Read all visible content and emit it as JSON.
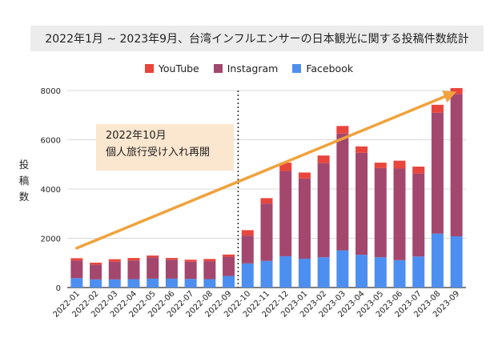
{
  "chart_data": {
    "type": "bar",
    "stacked": true,
    "title": "2022年1月 ~ 2023年9月、台湾インフルエンサーの日本観光に関する投稿件数統計",
    "ylabel": "投稿数",
    "xlabel": "",
    "ylim": [
      0,
      8000
    ],
    "yticks": [
      0,
      2000,
      4000,
      6000,
      8000
    ],
    "grid": true,
    "legend_position": "top-center",
    "categories": [
      "2022-01",
      "2022-02",
      "2022-03",
      "2022-04",
      "2022-05",
      "2022-06",
      "2022-07",
      "2022-08",
      "2022-09",
      "2022-10",
      "2022-11",
      "2022-12",
      "2023-01",
      "2023-02",
      "2023-03",
      "2023-04",
      "2023-05",
      "2023-06",
      "2023-07",
      "2023-08",
      "2023-09"
    ],
    "series": [
      {
        "name": "Facebook",
        "color": "#4d8ff0",
        "values": [
          380,
          330,
          330,
          340,
          360,
          360,
          350,
          340,
          470,
          980,
          1080,
          1270,
          1170,
          1230,
          1510,
          1330,
          1230,
          1110,
          1260,
          2190,
          2080
        ]
      },
      {
        "name": "Instagram",
        "color": "#a3476e",
        "values": [
          720,
          600,
          720,
          760,
          870,
          770,
          700,
          730,
          780,
          1130,
          2330,
          3460,
          3260,
          3820,
          4740,
          4140,
          3620,
          3720,
          3370,
          4910,
          5780
        ]
      },
      {
        "name": "YouTube",
        "color": "#e8453c",
        "values": [
          90,
          80,
          100,
          100,
          70,
          70,
          80,
          90,
          90,
          220,
          220,
          340,
          240,
          310,
          310,
          260,
          220,
          320,
          280,
          320,
          240
        ]
      }
    ],
    "legend_order": [
      "YouTube",
      "Instagram",
      "Facebook"
    ],
    "divider_after": "2022-09",
    "annotation": {
      "lines": [
        "2022年10月",
        "個人旅行受け入れ再開"
      ]
    },
    "trend_arrow": {
      "from_category": "2022-01",
      "from_value": 1600,
      "to_category": "2023-09",
      "to_value": 7950,
      "color": "#f0a23c"
    }
  }
}
